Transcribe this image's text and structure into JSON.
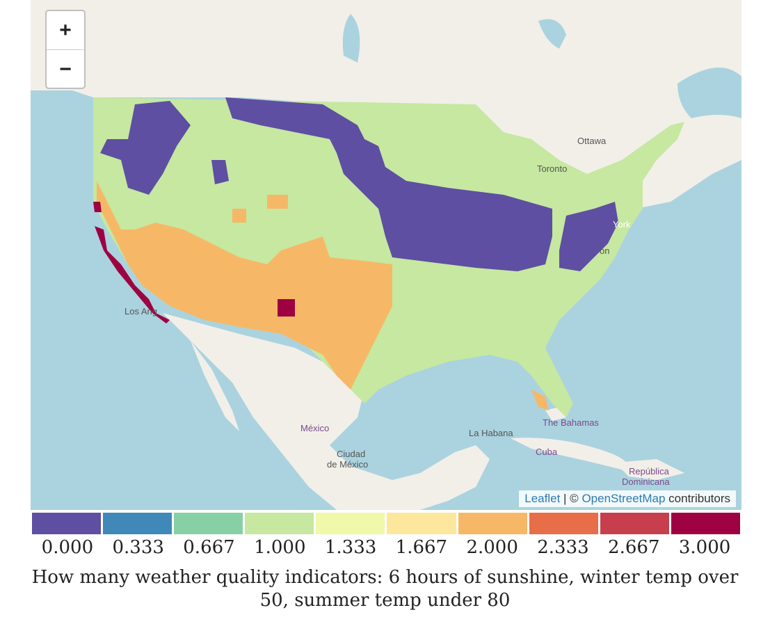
{
  "map": {
    "zoom_in_label": "+",
    "zoom_out_label": "−",
    "attribution": {
      "leaflet": "Leaflet",
      "separator": " | © ",
      "osm": "OpenStreetMap",
      "suffix": " contributors"
    },
    "place_labels": [
      "Ottawa",
      "Toronto",
      "York",
      "Los Ang",
      "México",
      "Ciudad",
      "de México",
      "La Habana",
      "The Bahamas",
      "Cuba",
      "República",
      "Dominicana",
      "on"
    ],
    "colors": {
      "water": "#aad3df",
      "land_other": "#f2efe9"
    }
  },
  "legend": {
    "colors": [
      "#5e4fa2",
      "#3f88b7",
      "#87cfa4",
      "#c6e8a0",
      "#f0f8aa",
      "#fde79c",
      "#f6b866",
      "#e76e48",
      "#c73f4d",
      "#9e0142"
    ],
    "ticks": [
      "0.000",
      "0.333",
      "0.667",
      "1.000",
      "1.333",
      "1.667",
      "2.000",
      "2.333",
      "2.667",
      "3.000"
    ]
  },
  "caption": "How many weather quality indicators: 6 hours of sunshine, winter temp over 50, summer temp under 80"
}
